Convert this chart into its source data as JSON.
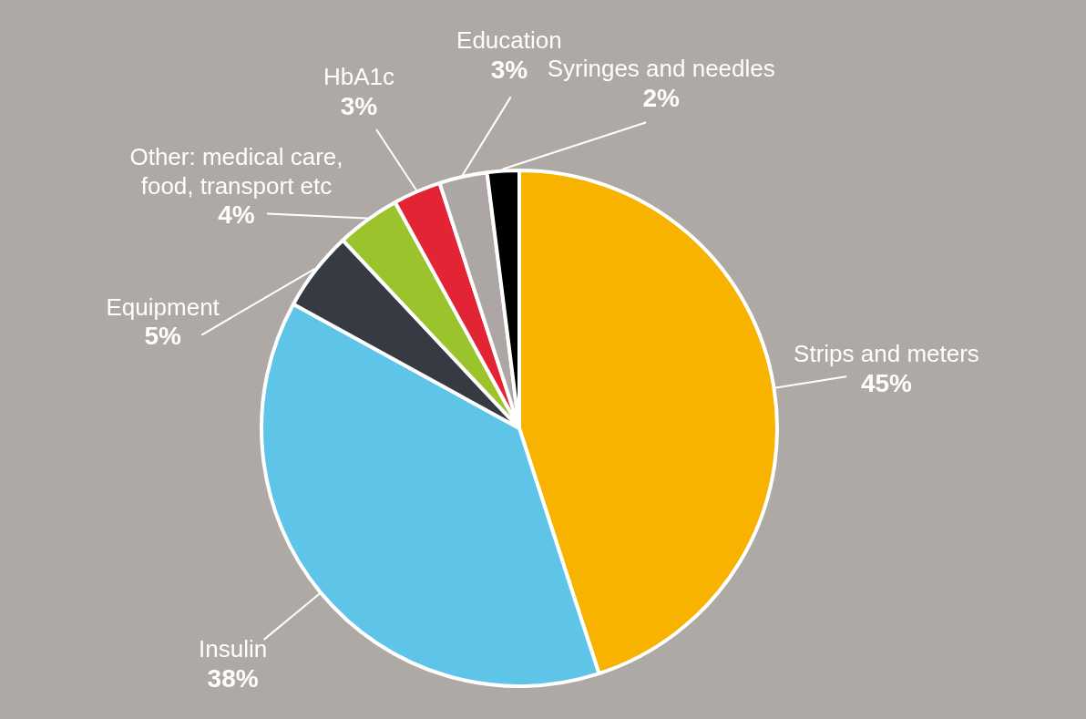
{
  "chart_data": {
    "type": "pie",
    "categories": [
      "Strips and meters",
      "Insulin",
      "Equipment",
      "Other: medical care, food, transport etc",
      "HbA1c",
      "Education",
      "Syringes and needles"
    ],
    "values": [
      45,
      38,
      5,
      4,
      3,
      3,
      2
    ],
    "colors": [
      "#f8b200",
      "#5ec4e8",
      "#363a42",
      "#9bc32c",
      "#e32434",
      "#aca7a4",
      "#000000"
    ],
    "value_labels": [
      "45%",
      "38%",
      "5%",
      "4%",
      "3%",
      "3%",
      "2%"
    ]
  }
}
